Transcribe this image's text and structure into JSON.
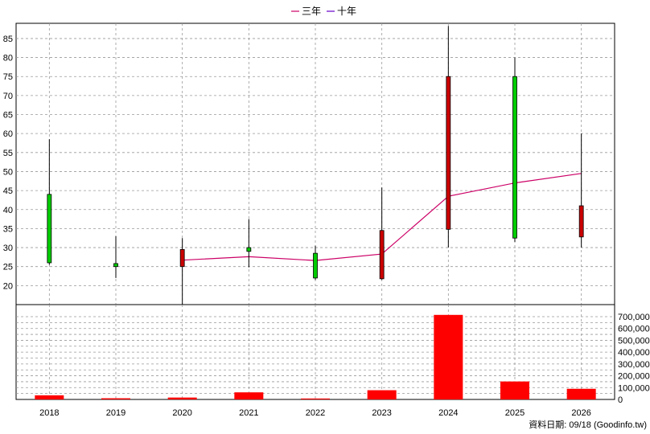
{
  "legend": {
    "items": [
      {
        "label": "三年",
        "color": "#cc0066"
      },
      {
        "label": "十年",
        "color": "#6600cc"
      }
    ]
  },
  "footer": {
    "source": "資料日期: 09/18  (Goodinfo.tw)"
  },
  "chart_data": [
    {
      "type": "candlestick",
      "categories": [
        "2018",
        "2019",
        "2020",
        "2021",
        "2022",
        "2023",
        "2024",
        "2025",
        "2026"
      ],
      "ylim": [
        15,
        89
      ],
      "yticks": [
        20,
        25,
        30,
        35,
        40,
        45,
        50,
        55,
        60,
        65,
        70,
        75,
        80,
        85
      ],
      "grid": true,
      "candles": [
        {
          "open": 26.0,
          "close": 44.0,
          "high": 58.5,
          "low": 25.5,
          "color": "#00cc00"
        },
        {
          "open": 25.0,
          "close": 25.8,
          "high": 33.0,
          "low": 22.0,
          "color": "#00cc00"
        },
        {
          "open": 29.5,
          "close": 25.0,
          "high": 32.5,
          "low": 15.0,
          "color": "#cc0000"
        },
        {
          "open": 29.0,
          "close": 30.0,
          "high": 37.5,
          "low": 24.8,
          "color": "#00cc00"
        },
        {
          "open": 22.0,
          "close": 28.5,
          "high": 30.5,
          "low": 21.5,
          "color": "#00cc00"
        },
        {
          "open": 34.5,
          "close": 21.8,
          "high": 45.8,
          "low": 21.5,
          "color": "#cc0000"
        },
        {
          "open": 75.0,
          "close": 34.8,
          "high": 88.3,
          "low": 30.0,
          "color": "#cc0000"
        },
        {
          "open": 32.5,
          "close": 75.0,
          "high": 80.0,
          "low": 31.5,
          "color": "#00cc00"
        },
        {
          "open": 41.0,
          "close": 32.8,
          "high": 60.0,
          "low": 30.0,
          "color": "#cc0000"
        }
      ],
      "series": [
        {
          "name": "三年",
          "color": "#cc0066",
          "values": [
            null,
            null,
            26.7,
            27.6,
            26.6,
            28.3,
            43.5,
            47.0,
            49.5
          ]
        },
        {
          "name": "十年",
          "color": "#6600cc",
          "values": [
            null,
            null,
            null,
            null,
            null,
            null,
            null,
            null,
            null
          ]
        }
      ]
    },
    {
      "type": "bar",
      "categories": [
        "2018",
        "2019",
        "2020",
        "2021",
        "2022",
        "2023",
        "2024",
        "2025",
        "2026"
      ],
      "values": [
        35000,
        10000,
        16000,
        60000,
        8000,
        78000,
        715000,
        152000,
        90000
      ],
      "ylim": [
        0,
        700000
      ],
      "yticks": [
        "0",
        "100,000",
        "200,000",
        "300,000",
        "400,000",
        "500,000",
        "600,000",
        "700,000"
      ],
      "color": "#ff0000",
      "grid": true
    }
  ]
}
